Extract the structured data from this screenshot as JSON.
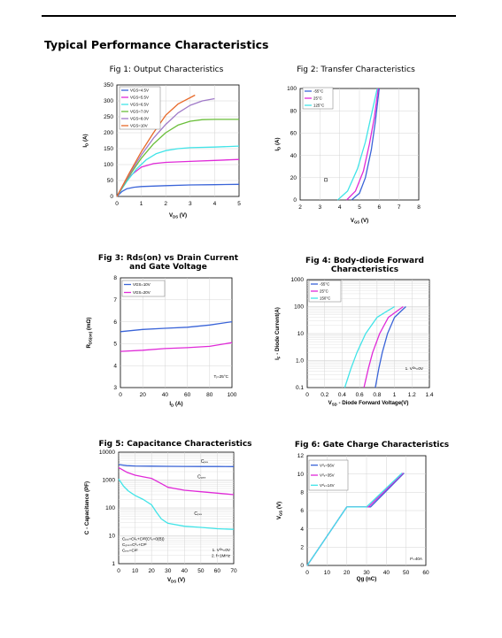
{
  "page": {
    "section_title": "Typical Performance Characteristics"
  },
  "chart_data": [
    {
      "type": "line",
      "title": "Fig 1: Output Characteristics",
      "xlabel": "V",
      "xlabel_sub": "DS",
      "xlabel_unit": " (V)",
      "ylabel": "I",
      "ylabel_sub": "D",
      "ylabel_unit": " (A)",
      "xlim": [
        0,
        5
      ],
      "ylim": [
        0,
        350
      ],
      "xticks": [
        0,
        1,
        2,
        3,
        4,
        5
      ],
      "yticks": [
        0,
        50,
        100,
        150,
        200,
        250,
        300,
        350
      ],
      "grid": true,
      "legend_position": "top-left",
      "series": [
        {
          "name": "VGS=4.5V",
          "color": "#3a64d8",
          "x": [
            0,
            0.2,
            0.4,
            0.7,
            1,
            2,
            3,
            4,
            5
          ],
          "y": [
            0,
            15,
            24,
            29,
            31,
            34,
            36,
            37,
            38
          ]
        },
        {
          "name": "VGS=5.5V",
          "color": "#e02ad8",
          "x": [
            0,
            0.3,
            0.6,
            1,
            1.5,
            2,
            3,
            4,
            5
          ],
          "y": [
            0,
            38,
            68,
            92,
            103,
            107,
            110,
            113,
            116
          ]
        },
        {
          "name": "VGS=6.5V",
          "color": "#41e4e8",
          "x": [
            0,
            0.4,
            0.8,
            1.2,
            1.6,
            2,
            2.5,
            3,
            4,
            5
          ],
          "y": [
            0,
            46,
            86,
            115,
            134,
            144,
            150,
            153,
            155,
            158
          ]
        },
        {
          "name": "VGS=7.0V",
          "color": "#6abe3a",
          "x": [
            0,
            0.5,
            1,
            1.5,
            2,
            2.5,
            3,
            3.5,
            4,
            5
          ],
          "y": [
            0,
            64,
            120,
            165,
            200,
            224,
            236,
            241,
            242,
            242
          ]
        },
        {
          "name": "VGS=8.0V",
          "color": "#a07ac8",
          "x": [
            0,
            0.5,
            1,
            1.5,
            2,
            2.5,
            3,
            3.5,
            4
          ],
          "y": [
            0,
            68,
            130,
            183,
            226,
            262,
            286,
            300,
            307
          ]
        },
        {
          "name": "VGS=10V",
          "color": "#e86a2a",
          "x": [
            0,
            0.5,
            1,
            1.5,
            2,
            2.5,
            3.2
          ],
          "y": [
            0,
            72,
            140,
            200,
            255,
            290,
            318
          ]
        }
      ]
    },
    {
      "type": "line",
      "title": "Fig 2: Transfer Characteristics",
      "xlabel": "V",
      "xlabel_sub": "GS",
      "xlabel_unit": " (V)",
      "ylabel": "I",
      "ylabel_sub": "D",
      "ylabel_unit": " (A)",
      "xlim": [
        2,
        8
      ],
      "ylim": [
        0,
        100
      ],
      "xticks": [
        2,
        3,
        4,
        5,
        6,
        7,
        8
      ],
      "yticks": [
        0,
        20,
        40,
        60,
        80,
        100
      ],
      "grid": true,
      "legend_position": "top-left",
      "series": [
        {
          "name": "-55°C",
          "color": "#3a64d8",
          "x": [
            4.6,
            5.0,
            5.3,
            5.6,
            5.8,
            6.0
          ],
          "y": [
            0,
            6,
            20,
            45,
            70,
            100
          ]
        },
        {
          "name": "25°C",
          "color": "#e02ad8",
          "x": [
            4.35,
            4.8,
            5.2,
            5.5,
            5.75,
            5.95
          ],
          "y": [
            0,
            8,
            26,
            50,
            74,
            100
          ]
        },
        {
          "name": "125°C",
          "color": "#41e4e8",
          "x": [
            3.9,
            4.4,
            4.9,
            5.3,
            5.6,
            5.9
          ],
          "y": [
            0,
            8,
            28,
            52,
            76,
            100
          ]
        }
      ]
    },
    {
      "type": "line",
      "title": "Fig 3: Rds(on) vs Drain Current and Gate Voltage",
      "xlabel": "I",
      "xlabel_sub": "D",
      "xlabel_unit": " (A)",
      "ylabel": "R",
      "ylabel_sub": "DS(on)",
      "ylabel_unit": " (mΩ)",
      "xlim": [
        0,
        100
      ],
      "ylim": [
        3,
        8
      ],
      "xticks": [
        0,
        20,
        40,
        60,
        80,
        100
      ],
      "yticks": [
        3,
        4,
        5,
        6,
        7,
        8
      ],
      "grid": true,
      "legend_position": "top-left",
      "annotation": "Tⱼ=25°C",
      "series": [
        {
          "name": "VGS=10V",
          "color": "#3a64d8",
          "x": [
            0,
            20,
            40,
            60,
            80,
            100
          ],
          "y": [
            5.55,
            5.65,
            5.7,
            5.75,
            5.85,
            6.0
          ]
        },
        {
          "name": "VGS=20V",
          "color": "#e02ad8",
          "x": [
            0,
            20,
            40,
            60,
            80,
            100
          ],
          "y": [
            4.65,
            4.7,
            4.78,
            4.82,
            4.88,
            5.05
          ]
        }
      ]
    },
    {
      "type": "line",
      "title": "Fig 4: Body-diode Forward  Characteristics",
      "xlabel": "V",
      "xlabel_sub": "SD",
      "xlabel_unit": " - Diode Forward Voltage(V)",
      "ylabel": "I",
      "ylabel_sub": "F",
      "ylabel_unit": " - Diode Current(A)",
      "xlim": [
        0,
        1.4
      ],
      "ylim": [
        0.1,
        1000
      ],
      "yscale": "log",
      "xticks": [
        0,
        0.2,
        0.4,
        0.6,
        0.8,
        1.0,
        1.2,
        1.4
      ],
      "xticklabels": [
        "0",
        "0.2",
        "0.4",
        "0.6",
        "0.8",
        "1",
        "1.2",
        "1.4"
      ],
      "yticks": [
        0.1,
        1,
        10,
        100,
        1000
      ],
      "yticklabels": [
        "0.1",
        "1.0",
        "10",
        "100",
        "1000"
      ],
      "grid": true,
      "legend_position": "top-left",
      "annotation": "1. Vᴳˢ=0V",
      "series": [
        {
          "name": "-55°C",
          "color": "#3a64d8",
          "x": [
            0.78,
            0.82,
            0.86,
            0.92,
            1.0,
            1.13
          ],
          "y": [
            0.1,
            0.5,
            2,
            10,
            40,
            100
          ]
        },
        {
          "name": "25°C",
          "color": "#e02ad8",
          "x": [
            0.65,
            0.7,
            0.75,
            0.83,
            0.93,
            1.1
          ],
          "y": [
            0.1,
            0.5,
            2,
            10,
            40,
            100
          ]
        },
        {
          "name": "150°C",
          "color": "#41e4e8",
          "x": [
            0.43,
            0.5,
            0.57,
            0.67,
            0.8,
            1.0
          ],
          "y": [
            0.1,
            0.5,
            2,
            10,
            40,
            100
          ]
        }
      ]
    },
    {
      "type": "line",
      "title": "Fig 5:  Capacitance Characteristics",
      "xlabel": "V",
      "xlabel_sub": "DS",
      "xlabel_unit": " (V)",
      "ylabel": "C - Capacitance (PF)",
      "ylabel_sub": "",
      "ylabel_unit": "",
      "xlim": [
        0,
        70
      ],
      "ylim": [
        1,
        10000
      ],
      "yscale": "log",
      "xticks": [
        0,
        10,
        20,
        30,
        40,
        50,
        60,
        70
      ],
      "yticks": [
        1,
        10,
        100,
        1000,
        10000
      ],
      "yticklabels": [
        "1",
        "10",
        "100",
        "1000",
        "10000"
      ],
      "grid": true,
      "series_labels": [
        "Cᵢₛₛ",
        "Cₒₛₛ",
        "Cᵣₛₛ"
      ],
      "notes_left": [
        "Cᵢₛₛ=Cᵍₛ+Cᵍᵈ(Cᵈₛ=0(B))",
        "Cₒₛₛ=Cᵈₛ+Cᵍᵈ",
        "Cᵣₛₛ=Cᵍᵈ"
      ],
      "notes_right": [
        "1. Vᴳˢ=0V",
        "2. f=1MHz"
      ],
      "series": [
        {
          "name": "Ciss",
          "color": "#3a64d8",
          "x": [
            0,
            5,
            10,
            20,
            30,
            40,
            50,
            60,
            70
          ],
          "y": [
            3600,
            3300,
            3200,
            3150,
            3100,
            3080,
            3060,
            3050,
            3040
          ]
        },
        {
          "name": "Coss",
          "color": "#e02ad8",
          "x": [
            0,
            5,
            10,
            15,
            20,
            25,
            30,
            40,
            50,
            60,
            70
          ],
          "y": [
            2800,
            1900,
            1500,
            1300,
            1150,
            800,
            550,
            430,
            380,
            340,
            300
          ]
        },
        {
          "name": "Crss",
          "color": "#41e4e8",
          "x": [
            0,
            3,
            6,
            10,
            15,
            20,
            23,
            26,
            30,
            40,
            50,
            60,
            70
          ],
          "y": [
            1100,
            600,
            400,
            280,
            200,
            130,
            70,
            40,
            28,
            22,
            20,
            18,
            17
          ]
        }
      ]
    },
    {
      "type": "line",
      "title": "Fig 6:  Gate Charge Characteristics",
      "xlabel": "Qg (nC)",
      "xlabel_sub": "",
      "xlabel_unit": "",
      "ylabel": "V",
      "ylabel_sub": "GS",
      "ylabel_unit": " (V)",
      "xlim": [
        0,
        60
      ],
      "ylim": [
        0,
        12
      ],
      "xticks": [
        0,
        10,
        20,
        30,
        40,
        50,
        60
      ],
      "yticks": [
        0,
        2,
        4,
        6,
        8,
        10,
        12
      ],
      "grid": true,
      "legend_position": "top-left",
      "annotation": "Iᵈ=40A",
      "series": [
        {
          "name": "Vᵈₛ=56V",
          "color": "#3a64d8",
          "x": [
            0,
            20,
            32,
            49
          ],
          "y": [
            0,
            6.4,
            6.4,
            10.1
          ]
        },
        {
          "name": "Vᵈₛ=35V",
          "color": "#e02ad8",
          "x": [
            0,
            20,
            31,
            48.5
          ],
          "y": [
            0,
            6.4,
            6.4,
            10.1
          ]
        },
        {
          "name": "Vᵈₛ=14V",
          "color": "#41e4e8",
          "x": [
            0,
            20,
            30,
            48
          ],
          "y": [
            0,
            6.4,
            6.4,
            10.1
          ]
        }
      ]
    }
  ]
}
